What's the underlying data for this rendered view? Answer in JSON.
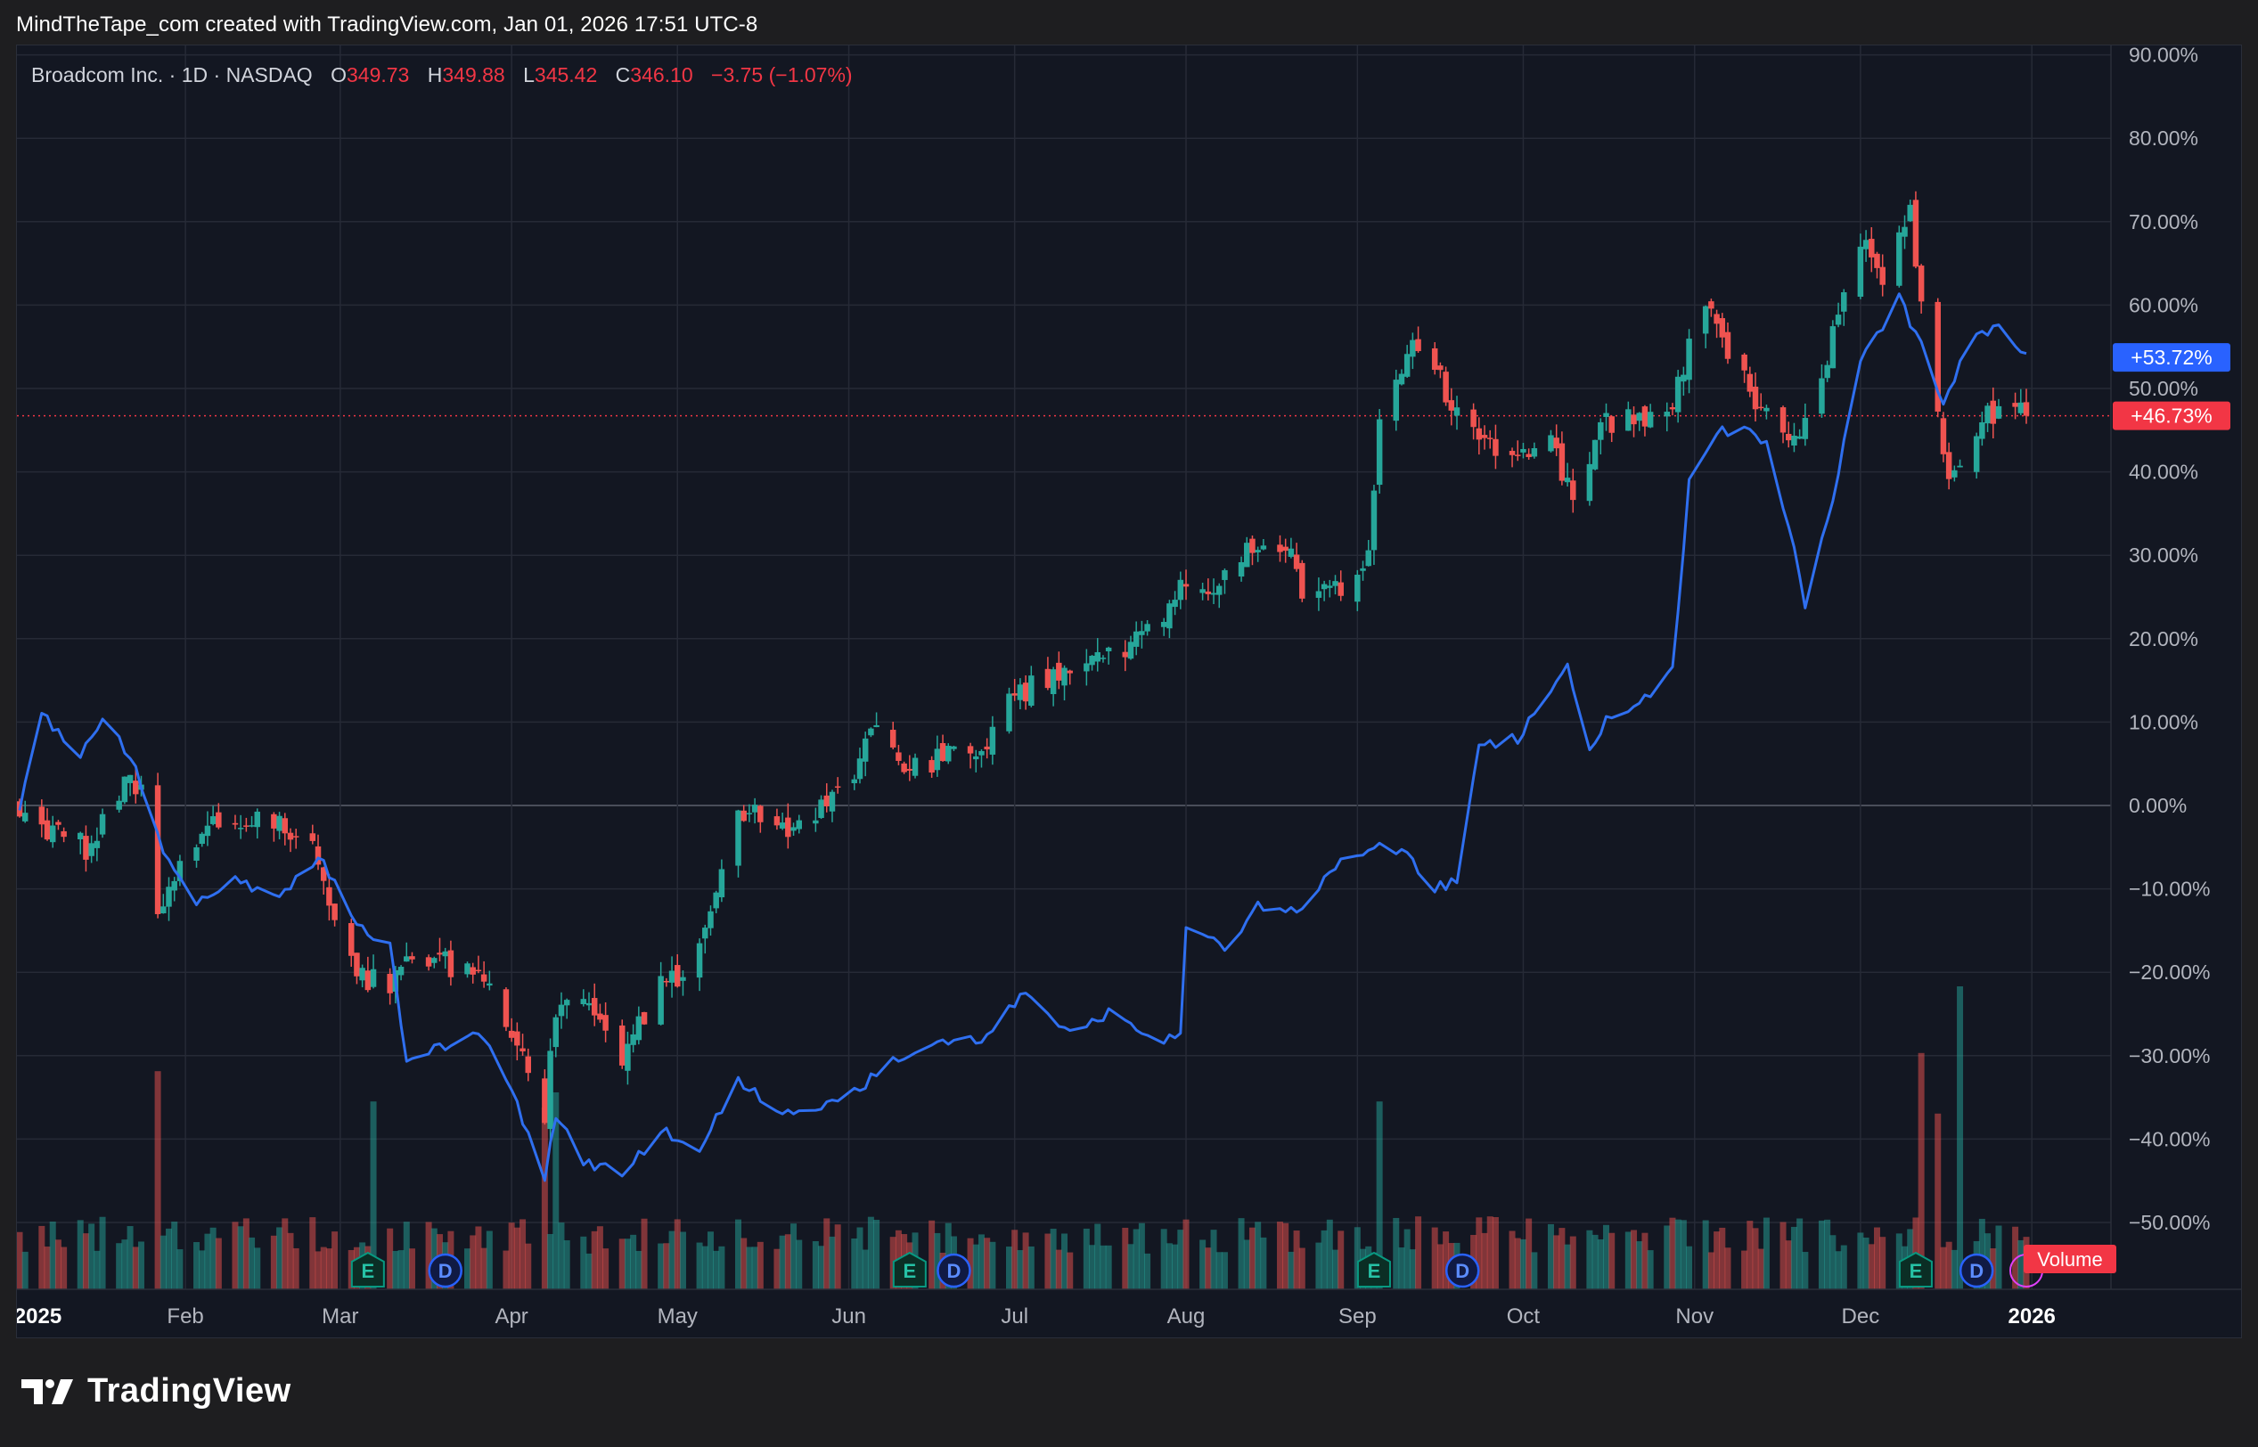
{
  "header": {
    "attribution": "MindTheTape_com created with TradingView.com, Jan 01, 2026 17:51 UTC-8"
  },
  "legend": {
    "symbol": "Broadcom Inc. · 1D · NASDAQ",
    "o_label": "O",
    "o_value": "349.73",
    "h_label": "H",
    "h_value": "349.88",
    "l_label": "L",
    "l_value": "345.42",
    "c_label": "C",
    "c_value": "346.10",
    "change": "−3.75 (−1.07%)"
  },
  "brand": {
    "name": "TradingView"
  },
  "colors": {
    "up": "#26a69a",
    "down": "#ef5350",
    "compare_line": "#2f6ff0",
    "panel_bg": "#131722",
    "grid": "#262a36",
    "label_blue": "#2962ff",
    "label_red": "#f23645"
  },
  "chart_data": {
    "type": "candlestick",
    "y_unit": "percent change",
    "ylim": [
      -58,
      90
    ],
    "y_ticks": [
      "90.00%",
      "80.00%",
      "70.00%",
      "60.00%",
      "50.00%",
      "40.00%",
      "30.00%",
      "20.00%",
      "10.00%",
      "0.00%",
      "−10.00%",
      "−20.00%",
      "−30.00%",
      "−40.00%",
      "−50.00%"
    ],
    "x_ticks": [
      "2025",
      "Feb",
      "Mar",
      "Apr",
      "May",
      "Jun",
      "Jul",
      "Aug",
      "Sep",
      "Oct",
      "Nov",
      "Dec",
      "2026"
    ],
    "grid": true,
    "last_value_labels": [
      {
        "series": "compare",
        "text": "+53.72%",
        "value": 53.72
      },
      {
        "series": "price",
        "text": "+46.73%",
        "value": 46.73
      }
    ],
    "volume_label": "Volume",
    "price_keypoints": [
      [
        "2025-01-02",
        0
      ],
      [
        "2025-01-08",
        -3
      ],
      [
        "2025-01-14",
        -5
      ],
      [
        "2025-01-20",
        2
      ],
      [
        "2025-01-24",
        3
      ],
      [
        "2025-01-27",
        -12
      ],
      [
        "2025-01-31",
        -7
      ],
      [
        "2025-02-06",
        -2
      ],
      [
        "2025-02-12",
        -1
      ],
      [
        "2025-02-18",
        -2
      ],
      [
        "2025-02-24",
        -4
      ],
      [
        "2025-02-27",
        -12
      ],
      [
        "2025-03-04",
        -20
      ],
      [
        "2025-03-10",
        -22
      ],
      [
        "2025-03-14",
        -17
      ],
      [
        "2025-03-20",
        -19
      ],
      [
        "2025-03-26",
        -19
      ],
      [
        "2025-03-31",
        -25
      ],
      [
        "2025-04-03",
        -31
      ],
      [
        "2025-04-07",
        -37
      ],
      [
        "2025-04-09",
        -24
      ],
      [
        "2025-04-14",
        -22
      ],
      [
        "2025-04-21",
        -30
      ],
      [
        "2025-04-28",
        -22
      ],
      [
        "2025-05-05",
        -18
      ],
      [
        "2025-05-12",
        0
      ],
      [
        "2025-05-20",
        -3
      ],
      [
        "2025-05-27",
        0
      ],
      [
        "2025-06-02",
        3
      ],
      [
        "2025-06-06",
        10
      ],
      [
        "2025-06-12",
        4
      ],
      [
        "2025-06-18",
        6
      ],
      [
        "2025-06-25",
        6
      ],
      [
        "2025-07-01",
        13
      ],
      [
        "2025-07-10",
        16
      ],
      [
        "2025-07-18",
        18
      ],
      [
        "2025-07-25",
        21
      ],
      [
        "2025-07-31",
        26
      ],
      [
        "2025-08-08",
        27
      ],
      [
        "2025-08-14",
        32
      ],
      [
        "2025-08-19",
        31
      ],
      [
        "2025-08-22",
        26
      ],
      [
        "2025-08-28",
        26
      ],
      [
        "2025-09-03",
        29
      ],
      [
        "2025-09-05",
        45
      ],
      [
        "2025-09-10",
        55
      ],
      [
        "2025-09-15",
        52
      ],
      [
        "2025-09-22",
        44
      ],
      [
        "2025-09-29",
        42
      ],
      [
        "2025-10-06",
        43
      ],
      [
        "2025-10-10",
        38
      ],
      [
        "2025-10-16",
        46
      ],
      [
        "2025-10-22",
        46
      ],
      [
        "2025-10-28",
        48
      ],
      [
        "2025-11-03",
        61
      ],
      [
        "2025-11-07",
        55
      ],
      [
        "2025-11-12",
        48
      ],
      [
        "2025-11-18",
        43
      ],
      [
        "2025-11-21",
        47
      ],
      [
        "2025-11-25",
        54
      ],
      [
        "2025-12-01",
        68
      ],
      [
        "2025-12-05",
        62
      ],
      [
        "2025-12-10",
        71
      ],
      [
        "2025-12-12",
        59
      ],
      [
        "2025-12-16",
        42
      ],
      [
        "2025-12-18",
        39
      ],
      [
        "2025-12-23",
        46
      ],
      [
        "2025-12-26",
        48
      ],
      [
        "2025-12-31",
        46.73
      ]
    ],
    "compare_keypoints": [
      [
        "2025-01-02",
        0
      ],
      [
        "2025-01-06",
        11
      ],
      [
        "2025-01-13",
        6
      ],
      [
        "2025-01-17",
        10
      ],
      [
        "2025-01-22",
        6
      ],
      [
        "2025-01-27",
        -4
      ],
      [
        "2025-02-03",
        -12
      ],
      [
        "2025-02-10",
        -9
      ],
      [
        "2025-02-18",
        -11
      ],
      [
        "2025-02-25",
        -6
      ],
      [
        "2025-03-04",
        -14
      ],
      [
        "2025-03-10",
        -17
      ],
      [
        "2025-03-13",
        -31
      ],
      [
        "2025-03-19",
        -29
      ],
      [
        "2025-03-26",
        -27
      ],
      [
        "2025-04-01",
        -34
      ],
      [
        "2025-04-07",
        -45
      ],
      [
        "2025-04-09",
        -37
      ],
      [
        "2025-04-14",
        -43
      ],
      [
        "2025-04-21",
        -44
      ],
      [
        "2025-04-28",
        -39
      ],
      [
        "2025-05-05",
        -41
      ],
      [
        "2025-05-12",
        -33
      ],
      [
        "2025-05-20",
        -37
      ],
      [
        "2025-05-27",
        -36
      ],
      [
        "2025-06-03",
        -34
      ],
      [
        "2025-06-10",
        -30
      ],
      [
        "2025-06-18",
        -28
      ],
      [
        "2025-06-25",
        -28
      ],
      [
        "2025-07-03",
        -22
      ],
      [
        "2025-07-10",
        -27
      ],
      [
        "2025-07-18",
        -25
      ],
      [
        "2025-07-25",
        -28
      ],
      [
        "2025-07-31",
        -28
      ],
      [
        "2025-08-01",
        -15
      ],
      [
        "2025-08-08",
        -17
      ],
      [
        "2025-08-14",
        -12
      ],
      [
        "2025-08-21",
        -13
      ],
      [
        "2025-08-28",
        -7
      ],
      [
        "2025-09-04",
        -5
      ],
      [
        "2025-09-10",
        -6
      ],
      [
        "2025-09-15",
        -10
      ],
      [
        "2025-09-19",
        -9
      ],
      [
        "2025-09-23",
        7
      ],
      [
        "2025-09-30",
        8
      ],
      [
        "2025-10-06",
        14
      ],
      [
        "2025-10-09",
        17
      ],
      [
        "2025-10-13",
        6
      ],
      [
        "2025-10-16",
        10
      ],
      [
        "2025-10-24",
        13
      ],
      [
        "2025-10-28",
        16
      ],
      [
        "2025-10-31",
        39
      ],
      [
        "2025-11-05",
        45
      ],
      [
        "2025-11-10",
        45
      ],
      [
        "2025-11-14",
        43
      ],
      [
        "2025-11-18",
        34
      ],
      [
        "2025-11-21",
        24
      ],
      [
        "2025-11-25",
        34
      ],
      [
        "2025-12-01",
        53
      ],
      [
        "2025-12-08",
        61
      ],
      [
        "2025-12-12",
        55
      ],
      [
        "2025-12-16",
        48
      ],
      [
        "2025-12-20",
        55
      ],
      [
        "2025-12-26",
        58
      ],
      [
        "2025-12-31",
        53.72
      ]
    ],
    "events": [
      {
        "type": "E",
        "date": "2025-03-06"
      },
      {
        "type": "D",
        "date": "2025-03-20"
      },
      {
        "type": "E",
        "date": "2025-06-12"
      },
      {
        "type": "D",
        "date": "2025-06-20"
      },
      {
        "type": "E",
        "date": "2025-09-04"
      },
      {
        "type": "D",
        "date": "2025-09-20"
      },
      {
        "type": "E",
        "date": "2025-12-11"
      },
      {
        "type": "D",
        "date": "2025-12-22"
      }
    ]
  }
}
